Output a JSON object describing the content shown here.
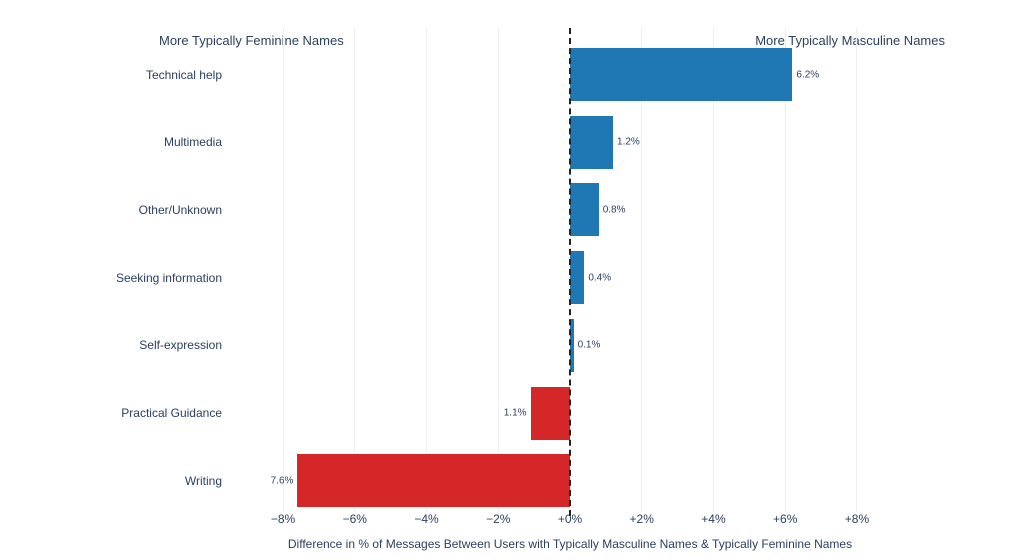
{
  "chart_data": {
    "type": "bar",
    "orientation": "horizontal",
    "title": "",
    "left_header": "More Typically Feminine Names",
    "right_header": "More Typically Masculine Names",
    "xlabel": "Difference in % of Messages Between Users with Typically Masculine Names & Typically Feminine Names",
    "ylabel": "",
    "categories": [
      "Technical help",
      "Multimedia",
      "Other/Unknown",
      "Seeking information",
      "Self-expression",
      "Practical Guidance",
      "Writing"
    ],
    "values": [
      6.2,
      1.2,
      0.8,
      0.4,
      0.1,
      -1.1,
      -7.6
    ],
    "value_labels": [
      "6.2%",
      "1.2%",
      "0.8%",
      "0.4%",
      "0.1%",
      "1.1%",
      "7.6%"
    ],
    "x_ticks": [
      "−8%",
      "−6%",
      "−4%",
      "−2%",
      "+0%",
      "+2%",
      "+4%",
      "+6%",
      "+8%"
    ],
    "x_tick_values": [
      -8,
      -6,
      -4,
      -2,
      0,
      2,
      4,
      6,
      8
    ],
    "xlim": [
      -9.2,
      9.2
    ],
    "grid": "vertical",
    "legend": "none",
    "zero_line_style": "dashed",
    "colors": {
      "positive": "#1f77b4",
      "negative": "#d62728",
      "text": "#2a3f5f",
      "gridline": "#ecf0f6",
      "zero_line": "#222222",
      "background": "#ffffff"
    }
  }
}
